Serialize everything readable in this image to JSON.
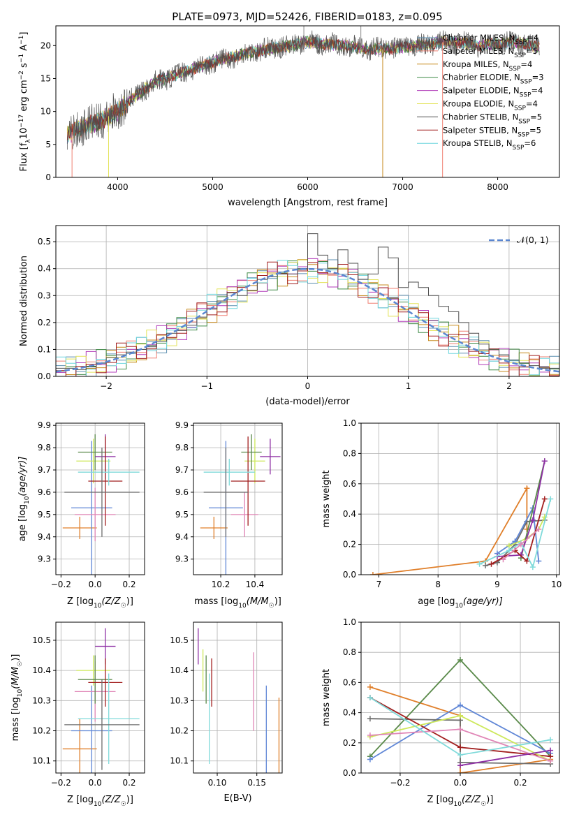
{
  "title": "PLATE=0973, MJD=52426, FIBERID=0183, z=0.095",
  "colors": {
    "chab_miles": "#5b8fb0",
    "salp_miles": "#ef7f72",
    "krou_miles": "#c78a1f",
    "chab_elodie": "#3f8a46",
    "salp_elodie": "#b03ab8",
    "krou_elodie": "#e3e35a",
    "chab_stelib": "#4d4d4d",
    "salp_stelib": "#a11d1d",
    "krou_stelib": "#6ed6dd",
    "panel3_orange": "#e07f2a",
    "panel3_blue": "#5f86d6",
    "panel3_grey": "#6d6d6d",
    "panel3_lime": "#cde85a",
    "panel3_green": "#5a8a4a",
    "panel3_pink": "#e085b6",
    "panel3_purple": "#8e2fa4",
    "panel3_red": "#a11d1d",
    "panel3_cyan": "#7fdada",
    "gaussian": "#5a86d0"
  },
  "chart_data": [
    {
      "id": "spectrum",
      "type": "line",
      "xlabel": "wavelength [Angstrom, rest frame]",
      "ylabel_main": "Flux [f",
      "ylabel_sub": "λ",
      "ylabel_rest": "10",
      "ylabel_exp": "−17",
      "ylabel_tail": " erg cm",
      "ylabel_tail_exp": "−2",
      "ylabel_tail2": " s",
      "ylabel_tail2_exp": "−1",
      "ylabel_tail3": " A",
      "ylabel_tail3_exp": "−1",
      "ylabel_end": "]",
      "xlim": [
        3350,
        8650
      ],
      "ylim": [
        0,
        23
      ],
      "xticks": [
        4000,
        5000,
        6000,
        7000,
        8000
      ],
      "yticks": [
        0,
        5,
        10,
        15,
        20
      ],
      "continuum": [
        [
          3470,
          6.5
        ],
        [
          3600,
          7.5
        ],
        [
          3800,
          8.5
        ],
        [
          4000,
          10.0
        ],
        [
          4200,
          12.5
        ],
        [
          4400,
          14.5
        ],
        [
          4600,
          15.5
        ],
        [
          4800,
          16.5
        ],
        [
          5000,
          17.5
        ],
        [
          5200,
          18.2
        ],
        [
          5400,
          19.0
        ],
        [
          5600,
          19.5
        ],
        [
          5800,
          20.0
        ],
        [
          6000,
          20.5
        ],
        [
          6200,
          20.2
        ],
        [
          6400,
          20.0
        ],
        [
          6600,
          19.5
        ],
        [
          6800,
          19.5
        ],
        [
          7000,
          19.8
        ],
        [
          7200,
          20.0
        ],
        [
          7400,
          20.5
        ],
        [
          7600,
          20.5
        ],
        [
          7800,
          20.0
        ],
        [
          8000,
          20.3
        ],
        [
          8200,
          20.5
        ],
        [
          8450,
          19.8
        ]
      ],
      "legend": [
        {
          "key": "chab_miles",
          "label": "Chabrier MILES, N",
          "sub": "SSP",
          "val": "=4"
        },
        {
          "key": "salp_miles",
          "label": "Salpeter MILES, N",
          "sub": "SSP",
          "val": "=5"
        },
        {
          "key": "krou_miles",
          "label": "Kroupa MILES, N",
          "sub": "SSP",
          "val": "=4"
        },
        {
          "key": "chab_elodie",
          "label": "Chabrier ELODIE, N",
          "sub": "SSP",
          "val": "=3"
        },
        {
          "key": "salp_elodie",
          "label": "Salpeter ELODIE, N",
          "sub": "SSP",
          "val": "=4"
        },
        {
          "key": "krou_elodie",
          "label": "Kroupa ELODIE, N",
          "sub": "SSP",
          "val": "=4"
        },
        {
          "key": "chab_stelib",
          "label": "Chabrier STELIB, N",
          "sub": "SSP",
          "val": "=5"
        },
        {
          "key": "salp_stelib",
          "label": "Salpeter STELIB, N",
          "sub": "SSP",
          "val": "=5"
        },
        {
          "key": "krou_stelib",
          "label": "Kroupa STELIB, N",
          "sub": "SSP",
          "val": "=6"
        }
      ]
    },
    {
      "id": "residuals",
      "type": "step-histogram",
      "xlabel": "(data-model)/error",
      "ylabel": "Normed distribution",
      "xlim": [
        -2.5,
        2.5
      ],
      "ylim": [
        0,
        0.56
      ],
      "xticks": [
        -2,
        -1,
        0,
        1,
        2
      ],
      "yticks": [
        0.0,
        0.1,
        0.2,
        0.3,
        0.4,
        0.5
      ],
      "legend_label": "𝒩(0, 1)",
      "bin_width": 0.1,
      "bin_start": -2.5,
      "grey_heights": [
        0.03,
        0.03,
        0.025,
        0.035,
        0.05,
        0.07,
        0.08,
        0.09,
        0.1,
        0.11,
        0.13,
        0.16,
        0.17,
        0.19,
        0.22,
        0.25,
        0.28,
        0.31,
        0.3,
        0.32,
        0.36,
        0.37,
        0.38,
        0.38,
        0.4,
        0.53,
        0.45,
        0.4,
        0.47,
        0.42,
        0.36,
        0.38,
        0.48,
        0.44,
        0.33,
        0.35,
        0.33,
        0.3,
        0.26,
        0.24,
        0.2,
        0.16,
        0.12,
        0.1,
        0.08,
        0.06,
        0.05,
        0.04,
        0.03,
        0.03
      ]
    },
    {
      "id": "age_vs_Z",
      "type": "scatter",
      "xlabel": "Z [log",
      "xlabel_sub": "10",
      "xlabel_rest": "(Z/Z",
      "xlabel_sun": "☉",
      "xlabel_end": ")]",
      "ylabel": "age  [log",
      "ylabel_sub": "10",
      "ylabel_rest": "(age/yr)]",
      "xlim": [
        -0.23,
        0.29
      ],
      "ylim": [
        9.23,
        9.91
      ],
      "xticks": [
        -0.2,
        0.0,
        0.2
      ],
      "yticks": [
        9.3,
        9.4,
        9.5,
        9.6,
        9.7,
        9.8,
        9.9
      ]
    },
    {
      "id": "age_vs_mass",
      "type": "scatter",
      "xlabel": "mass [log",
      "xlabel_sub": "10",
      "xlabel_rest": "(M/M",
      "xlabel_sun": "☉",
      "xlabel_end": ")]",
      "xlim": [
        10.04,
        10.56
      ],
      "ylim": [
        9.23,
        9.91
      ],
      "xticks": [
        10.2,
        10.4
      ],
      "yticks": [
        9.3,
        9.4,
        9.5,
        9.6,
        9.7,
        9.8,
        9.9
      ]
    },
    {
      "id": "weight_vs_age",
      "type": "line",
      "xlabel": "age  [log",
      "xlabel_sub": "10",
      "xlabel_rest": "(age/yr)]",
      "ylabel": "mass weight",
      "xlim": [
        6.7,
        10.05
      ],
      "ylim": [
        0,
        1
      ],
      "xticks": [
        7,
        8,
        9,
        10
      ],
      "yticks": [
        0.0,
        0.2,
        0.4,
        0.6,
        0.8,
        1.0
      ],
      "series": [
        {
          "color": "panel3_orange",
          "points": [
            [
              6.9,
              0.0
            ],
            [
              8.8,
              0.09
            ],
            [
              9.5,
              0.57
            ],
            [
              9.5,
              0.3
            ]
          ]
        },
        {
          "color": "panel3_grey",
          "points": [
            [
              8.8,
              0.06
            ],
            [
              9.0,
              0.08
            ],
            [
              9.3,
              0.2
            ],
            [
              9.5,
              0.35
            ],
            [
              9.8,
              0.36
            ]
          ]
        },
        {
          "color": "panel3_blue",
          "points": [
            [
              9.0,
              0.14
            ],
            [
              9.3,
              0.22
            ],
            [
              9.6,
              0.44
            ],
            [
              9.7,
              0.09
            ]
          ]
        },
        {
          "color": "panel3_lime",
          "points": [
            [
              9.2,
              0.19
            ],
            [
              9.5,
              0.24
            ],
            [
              9.7,
              0.3
            ],
            [
              9.8,
              0.38
            ]
          ]
        },
        {
          "color": "panel3_green",
          "points": [
            [
              9.4,
              0.11
            ],
            [
              9.8,
              0.75
            ]
          ]
        },
        {
          "color": "panel3_purple",
          "points": [
            [
              9.0,
              0.12
            ],
            [
              9.4,
              0.13
            ],
            [
              9.6,
              0.36
            ],
            [
              9.8,
              0.75
            ]
          ]
        },
        {
          "color": "panel3_red",
          "points": [
            [
              8.9,
              0.07
            ],
            [
              9.3,
              0.16
            ],
            [
              9.5,
              0.09
            ],
            [
              9.8,
              0.5
            ]
          ]
        },
        {
          "color": "panel3_cyan",
          "points": [
            [
              8.7,
              0.07
            ],
            [
              9.2,
              0.16
            ],
            [
              9.4,
              0.21
            ],
            [
              9.6,
              0.05
            ],
            [
              9.9,
              0.5
            ]
          ]
        },
        {
          "color": "panel3_pink",
          "points": [
            [
              9.1,
              0.1
            ],
            [
              9.4,
              0.2
            ],
            [
              9.7,
              0.3
            ]
          ]
        }
      ]
    },
    {
      "id": "mass_vs_Z",
      "type": "scatter",
      "xlabel": "Z [log",
      "xlabel_sub": "10",
      "xlabel_rest": "(Z/Z",
      "xlabel_sun": "☉",
      "xlabel_end": ")]",
      "ylabel": "mass [log",
      "ylabel_sub": "10",
      "ylabel_rest": "(M/M",
      "ylabel_sun": "☉",
      "ylabel_end": ")]",
      "xlim": [
        -0.23,
        0.29
      ],
      "ylim": [
        10.06,
        10.56
      ],
      "xticks": [
        -0.2,
        0.0,
        0.2
      ],
      "yticks": [
        10.1,
        10.2,
        10.3,
        10.4,
        10.5
      ]
    },
    {
      "id": "mass_vs_ebv",
      "type": "scatter",
      "xlabel": "E(B-V)",
      "xlim": [
        0.07,
        0.182
      ],
      "ylim": [
        10.06,
        10.56
      ],
      "xticks": [
        0.1,
        0.15
      ],
      "yticks": [
        10.1,
        10.2,
        10.3,
        10.4,
        10.5
      ]
    },
    {
      "id": "weight_vs_Z",
      "type": "line",
      "xlabel": "Z [log",
      "xlabel_sub": "10",
      "xlabel_rest": "(Z/Z",
      "xlabel_sun": "☉",
      "xlabel_end": ")]",
      "ylabel": "mass weight",
      "xlim": [
        -0.33,
        0.33
      ],
      "ylim": [
        0,
        1
      ],
      "xticks": [
        -0.2,
        0.0,
        0.2
      ],
      "yticks": [
        0.0,
        0.2,
        0.4,
        0.6,
        0.8,
        1.0
      ],
      "series": [
        {
          "color": "panel3_orange",
          "points": [
            [
              -0.3,
              0.57
            ],
            [
              0.0,
              0.38
            ],
            [
              0.0,
              0.0
            ],
            [
              0.3,
              0.09
            ]
          ]
        },
        {
          "color": "panel3_green",
          "points": [
            [
              -0.3,
              0.11
            ],
            [
              0.0,
              0.75
            ],
            [
              0.3,
              0.11
            ]
          ]
        },
        {
          "color": "panel3_blue",
          "points": [
            [
              -0.3,
              0.09
            ],
            [
              0.0,
              0.45
            ],
            [
              0.3,
              0.13
            ]
          ]
        },
        {
          "color": "panel3_grey",
          "points": [
            [
              -0.3,
              0.36
            ],
            [
              0.0,
              0.35
            ],
            [
              0.0,
              0.07
            ],
            [
              0.3,
              0.06
            ]
          ]
        },
        {
          "color": "panel3_red",
          "points": [
            [
              -0.3,
              0.5
            ],
            [
              0.0,
              0.17
            ],
            [
              0.3,
              0.11
            ]
          ]
        },
        {
          "color": "panel3_lime",
          "points": [
            [
              -0.3,
              0.24
            ],
            [
              0.0,
              0.38
            ],
            [
              0.3,
              0.08
            ]
          ]
        },
        {
          "color": "panel3_pink",
          "points": [
            [
              -0.3,
              0.25
            ],
            [
              0.0,
              0.29
            ],
            [
              0.3,
              0.08
            ]
          ]
        },
        {
          "color": "panel3_purple",
          "points": [
            [
              0.0,
              0.05
            ],
            [
              0.3,
              0.15
            ]
          ]
        },
        {
          "color": "panel3_cyan",
          "points": [
            [
              -0.3,
              0.5
            ],
            [
              0.0,
              0.12
            ],
            [
              0.3,
              0.22
            ]
          ]
        }
      ]
    }
  ],
  "errorbars_top": {
    "age_vs_Z": [
      {
        "c": "panel3_orange",
        "x": -0.09,
        "y": 9.44,
        "dx": 0.1,
        "dy": 0.05
      },
      {
        "c": "panel3_blue",
        "x": -0.02,
        "y": 9.53,
        "dx": 0.12,
        "dy": 0.3
      },
      {
        "c": "panel3_pink",
        "x": 0.0,
        "y": 9.5,
        "dx": 0.12,
        "dy": 0.12
      },
      {
        "c": "panel3_lime",
        "x": -0.01,
        "y": 9.74,
        "dx": 0.1,
        "dy": 0.1
      },
      {
        "c": "panel3_green",
        "x": 0.0,
        "y": 9.78,
        "dx": 0.1,
        "dy": 0.08
      },
      {
        "c": "panel3_purple",
        "x": 0.06,
        "y": 9.76,
        "dx": 0.06,
        "dy": 0.1
      },
      {
        "c": "panel3_red",
        "x": 0.06,
        "y": 9.65,
        "dx": 0.1,
        "dy": 0.2
      },
      {
        "c": "panel3_cyan",
        "x": 0.08,
        "y": 9.69,
        "dx": 0.18,
        "dy": 0.06
      },
      {
        "c": "panel3_grey",
        "x": 0.04,
        "y": 9.6,
        "dx": 0.22,
        "dy": 0.2
      }
    ],
    "age_vs_mass": [
      {
        "c": "panel3_orange",
        "x": 10.16,
        "y": 9.44,
        "dx": 0.08,
        "dy": 0.05
      },
      {
        "c": "panel3_blue",
        "x": 10.23,
        "y": 9.53,
        "dx": 0.1,
        "dy": 0.3
      },
      {
        "c": "panel3_pink",
        "x": 10.34,
        "y": 9.5,
        "dx": 0.08,
        "dy": 0.1
      },
      {
        "c": "panel3_lime",
        "x": 10.4,
        "y": 9.74,
        "dx": 0.06,
        "dy": 0.1
      },
      {
        "c": "panel3_green",
        "x": 10.38,
        "y": 9.78,
        "dx": 0.06,
        "dy": 0.08
      },
      {
        "c": "panel3_purple",
        "x": 10.49,
        "y": 9.76,
        "dx": 0.06,
        "dy": 0.08
      },
      {
        "c": "panel3_red",
        "x": 10.36,
        "y": 9.65,
        "dx": 0.1,
        "dy": 0.2
      },
      {
        "c": "panel3_cyan",
        "x": 10.25,
        "y": 9.69,
        "dx": 0.15,
        "dy": 0.06
      },
      {
        "c": "panel3_grey",
        "x": 10.23,
        "y": 9.6,
        "dx": 0.13,
        "dy": 0.2
      }
    ],
    "mass_vs_Z": [
      {
        "c": "panel3_orange",
        "x": -0.09,
        "y": 10.14,
        "dx": 0.1,
        "dy": 0.1
      },
      {
        "c": "panel3_blue",
        "x": -0.02,
        "y": 10.2,
        "dx": 0.12,
        "dy": 0.15
      },
      {
        "c": "panel3_pink",
        "x": 0.0,
        "y": 10.33,
        "dx": 0.12,
        "dy": 0.1
      },
      {
        "c": "panel3_lime",
        "x": -0.01,
        "y": 10.4,
        "dx": 0.1,
        "dy": 0.05
      },
      {
        "c": "panel3_green",
        "x": 0.0,
        "y": 10.37,
        "dx": 0.1,
        "dy": 0.08
      },
      {
        "c": "panel3_purple",
        "x": 0.06,
        "y": 10.48,
        "dx": 0.06,
        "dy": 0.06
      },
      {
        "c": "panel3_red",
        "x": 0.06,
        "y": 10.36,
        "dx": 0.1,
        "dy": 0.08
      },
      {
        "c": "panel3_cyan",
        "x": 0.08,
        "y": 10.24,
        "dx": 0.18,
        "dy": 0.15
      },
      {
        "c": "panel3_grey",
        "x": 0.04,
        "y": 10.22,
        "dx": 0.22,
        "dy": 0.15
      }
    ],
    "mass_vs_ebv": [
      {
        "c": "panel3_purple",
        "x": 0.076,
        "y": 10.48,
        "dx": 0,
        "dy": 0.06
      },
      {
        "c": "panel3_lime",
        "x": 0.082,
        "y": 10.4,
        "dx": 0,
        "dy": 0.07
      },
      {
        "c": "panel3_green",
        "x": 0.086,
        "y": 10.37,
        "dx": 0,
        "dy": 0.08
      },
      {
        "c": "panel3_cyan",
        "x": 0.09,
        "y": 10.24,
        "dx": 0,
        "dy": 0.15
      },
      {
        "c": "panel3_red",
        "x": 0.093,
        "y": 10.36,
        "dx": 0,
        "dy": 0.08
      },
      {
        "c": "panel3_pink",
        "x": 0.146,
        "y": 10.33,
        "dx": 0,
        "dy": 0.13
      },
      {
        "c": "panel3_blue",
        "x": 0.162,
        "y": 10.2,
        "dx": 0,
        "dy": 0.15
      },
      {
        "c": "panel3_orange",
        "x": 0.178,
        "y": 10.14,
        "dx": 0,
        "dy": 0.17
      }
    ]
  }
}
